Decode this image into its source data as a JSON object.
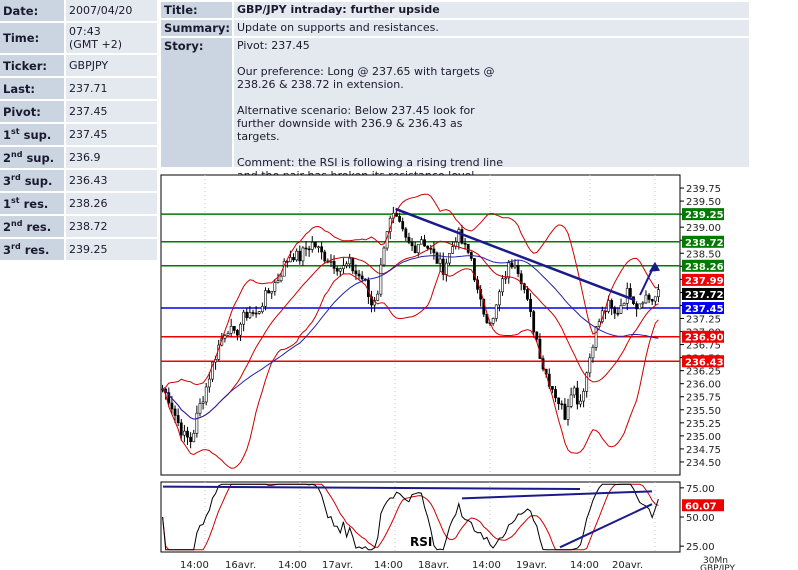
{
  "info": {
    "date_label": "Date:",
    "date": "2007/04/20",
    "time_label": "Time:",
    "time": "07:43",
    "time_zone": "(GMT +2)",
    "ticker_label": "Ticker:",
    "ticker": "GBPJPY",
    "last_label": "Last:",
    "last": "237.71",
    "pivot_label": "Pivot:",
    "pivot": "237.45",
    "sup1_label_n": "1",
    "sup1_label_s": "st",
    "sup1_label_t": " sup.",
    "sup1": "237.45",
    "sup2_label_n": "2",
    "sup2_label_s": "nd",
    "sup2_label_t": " sup.",
    "sup2": "236.9",
    "sup3_label_n": "3",
    "sup3_label_s": "rd",
    "sup3_label_t": " sup.",
    "sup3": "236.43",
    "res1_label_n": "1",
    "res1_label_s": "st",
    "res1_label_t": " res.",
    "res1": "238.26",
    "res2_label_n": "2",
    "res2_label_s": "nd",
    "res2_label_t": " res.",
    "res2": "238.72",
    "res3_label_n": "3",
    "res3_label_s": "rd",
    "res3_label_t": " res.",
    "res3": "239.25"
  },
  "summary": {
    "title_label": "Title:",
    "title": "GBP/JPY intraday: further upside",
    "summary_label": "Summary:",
    "summary": "Update on supports and resistances.",
    "story_label": "Story:",
    "story": [
      "Pivot: 237.45",
      "Our preference: Long @ 237.65 with targets @ 238.26 & 238.72 in extension.",
      "Alternative scenario: Below 237.45 look for further downside with 236.9 & 236.43 as targets.",
      "Comment: the RSI is following a rising trend line and the pair has broken its resistance level."
    ]
  },
  "chart_data": [
    {
      "type": "candlestick",
      "ylim": [
        234.25,
        240.0
      ],
      "y_ticks": [
        "234.50",
        "234.75",
        "235.00",
        "235.25",
        "235.50",
        "235.75",
        "236.00",
        "236.25",
        "236.50",
        "236.75",
        "237.00",
        "237.25",
        "237.50",
        "237.75",
        "238.00",
        "238.25",
        "238.50",
        "238.75",
        "239.00",
        "239.25",
        "239.50",
        "239.75"
      ],
      "x_ticks": [
        "14:00",
        "16avr.",
        "14:00",
        "17avr.",
        "14:00",
        "18avr.",
        "14:00",
        "19avr.",
        "14:00",
        "20avr."
      ],
      "levels": [
        {
          "name": "3rd res.",
          "value": 239.25,
          "label": "239.25",
          "color": "#007a00"
        },
        {
          "name": "2nd res.",
          "value": 238.72,
          "label": "238.72",
          "color": "#007a00"
        },
        {
          "name": "1st res.",
          "value": 238.26,
          "label": "238.26",
          "color": "#007a00"
        },
        {
          "name": "pivot",
          "value": 237.45,
          "label": "237.45",
          "color": "#0000ee"
        },
        {
          "name": "2nd sup.",
          "value": 236.9,
          "label": "236.90",
          "color": "#ee0000"
        },
        {
          "name": "3rd sup.",
          "value": 236.43,
          "label": "236.43",
          "color": "#ee0000"
        }
      ],
      "markers": [
        {
          "label": "237.99",
          "value": 237.99,
          "color": "#ee0000"
        },
        {
          "label": "237.72",
          "value": 237.72,
          "color": "#000000"
        }
      ],
      "close_path": [
        235.9,
        235.7,
        235.3,
        235.0,
        234.9,
        235.5,
        235.9,
        236.4,
        236.8,
        237.1,
        236.9,
        237.2,
        237.4,
        237.3,
        237.6,
        237.8,
        238.0,
        238.3,
        238.5,
        238.4,
        238.6,
        238.7,
        238.5,
        238.4,
        238.3,
        238.2,
        238.3,
        238.1,
        238.0,
        237.5,
        237.8,
        238.9,
        239.2,
        239.0,
        238.7,
        238.6,
        238.8,
        238.6,
        238.4,
        238.2,
        238.5,
        238.9,
        238.6,
        238.4,
        237.6,
        237.3,
        237.2,
        237.8,
        238.2,
        238.4,
        238.0,
        237.4,
        236.9,
        236.3,
        236.0,
        235.7,
        235.4,
        236.0,
        235.6,
        236.2,
        236.9,
        237.3,
        237.5,
        237.3,
        237.6,
        237.8,
        237.5,
        237.7,
        237.6,
        237.7
      ],
      "trend_line": [
        [
          0.47,
          239.35
        ],
        [
          0.95,
          237.6
        ]
      ],
      "arrow": {
        "from": [
          0.96,
          237.7
        ],
        "to": [
          0.99,
          238.3
        ]
      }
    },
    {
      "type": "line",
      "name": "RSI",
      "label": "RSI",
      "ylim": [
        20,
        80
      ],
      "y_ticks": [
        "25.00",
        "50.00",
        "75.00"
      ],
      "marker": {
        "label": "60.07",
        "value": 60.07,
        "color": "#ee0000"
      },
      "unit_label_1": "30Mn",
      "unit_label_2": "GBP/JPY"
    }
  ]
}
